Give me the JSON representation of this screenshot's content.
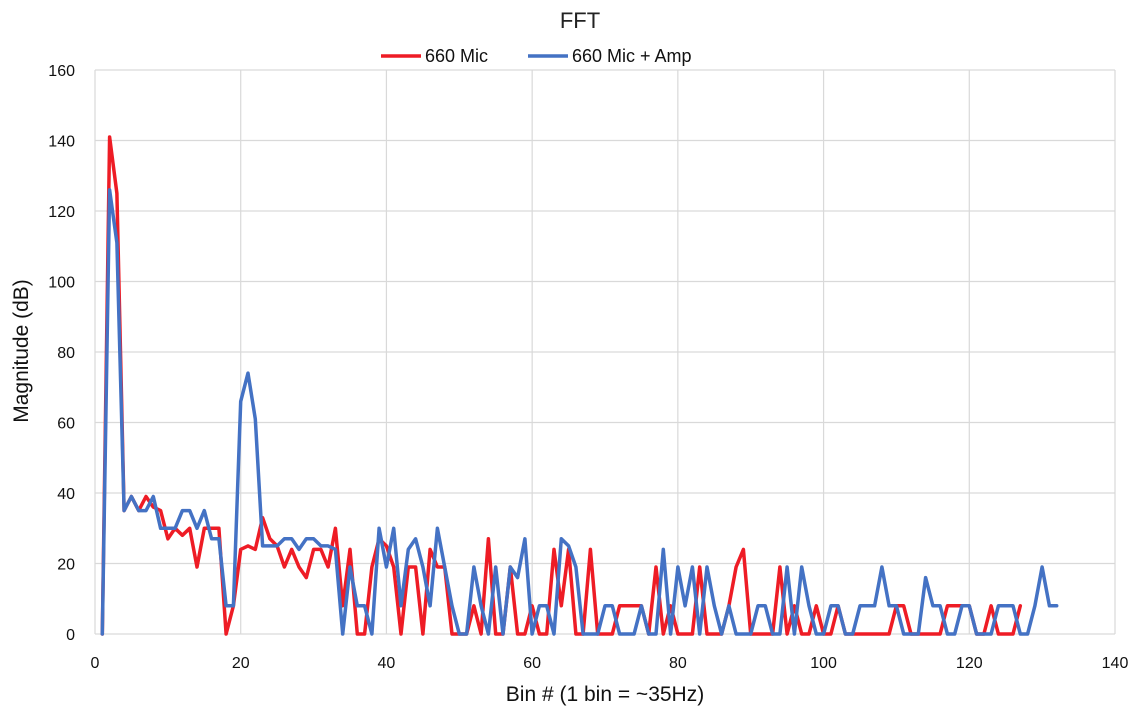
{
  "chart_data": {
    "type": "line",
    "title": "FFT",
    "xlabel": "Bin # (1 bin = ~35Hz)",
    "ylabel": "Magnitude (dB)",
    "xlim": [
      0,
      140
    ],
    "ylim": [
      0,
      160
    ],
    "xticks": [
      0,
      20,
      40,
      60,
      80,
      100,
      120,
      140
    ],
    "yticks": [
      0,
      20,
      40,
      60,
      80,
      100,
      120,
      140,
      160
    ],
    "grid": true,
    "legend": "top",
    "x_start": 1,
    "series": [
      {
        "name": "660 Mic",
        "color": "#ee1c25",
        "values": [
          0,
          141,
          125,
          35,
          39,
          35,
          39,
          36,
          35,
          27,
          30,
          28,
          30,
          19,
          30,
          30,
          30,
          0,
          8,
          24,
          25,
          24,
          33,
          27,
          25,
          19,
          24,
          19,
          16,
          24,
          24,
          19,
          30,
          8,
          24,
          0,
          0,
          19,
          27,
          25,
          19,
          0,
          19,
          19,
          0,
          24,
          19,
          19,
          0,
          0,
          0,
          8,
          0,
          27,
          0,
          0,
          19,
          0,
          0,
          8,
          0,
          0,
          24,
          8,
          24,
          0,
          0,
          24,
          0,
          0,
          0,
          8,
          8,
          8,
          8,
          0,
          19,
          0,
          8,
          0,
          0,
          0,
          19,
          0,
          0,
          0,
          8,
          19,
          24,
          0,
          0,
          0,
          0,
          19,
          0,
          8,
          0,
          0,
          8,
          0,
          0,
          8,
          0,
          0,
          0,
          0,
          0,
          0,
          0,
          8,
          8,
          0,
          0,
          0,
          0,
          0,
          8,
          8,
          8,
          8,
          0,
          0,
          8,
          0,
          0,
          0,
          8
        ]
      },
      {
        "name": "660 Mic + Amp",
        "color": "#4472c4",
        "values": [
          0,
          126,
          111,
          35,
          39,
          35,
          35,
          39,
          30,
          30,
          30,
          35,
          35,
          30,
          35,
          27,
          27,
          8,
          8,
          66,
          74,
          61,
          25,
          25,
          25,
          27,
          27,
          24,
          27,
          27,
          25,
          25,
          24,
          0,
          19,
          8,
          8,
          0,
          30,
          19,
          30,
          8,
          24,
          27,
          19,
          8,
          30,
          19,
          8,
          0,
          0,
          19,
          8,
          0,
          19,
          0,
          19,
          16,
          27,
          0,
          8,
          8,
          0,
          27,
          25,
          19,
          0,
          0,
          0,
          8,
          8,
          0,
          0,
          0,
          8,
          0,
          0,
          24,
          0,
          19,
          8,
          19,
          0,
          19,
          8,
          0,
          8,
          0,
          0,
          0,
          8,
          8,
          0,
          0,
          19,
          0,
          19,
          8,
          0,
          0,
          8,
          8,
          0,
          0,
          8,
          8,
          8,
          19,
          8,
          8,
          0,
          0,
          0,
          16,
          8,
          8,
          0,
          0,
          8,
          8,
          0,
          0,
          0,
          8,
          8,
          8,
          0,
          0,
          8,
          19,
          8,
          8
        ]
      }
    ]
  }
}
